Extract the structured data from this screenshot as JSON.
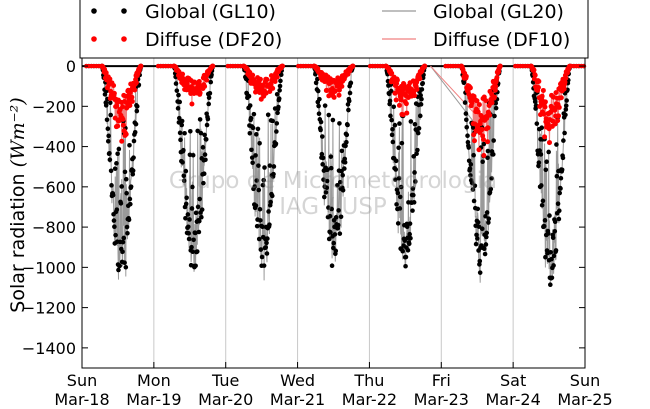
{
  "chart_data": {
    "type": "scatter",
    "ylabel": "Solar radiation",
    "ylabel_unit": "(Wm⁻²)",
    "ylim": [
      -1500,
      50
    ],
    "xlim": [
      0,
      7
    ],
    "yticks": [
      0,
      -200,
      -400,
      -600,
      -800,
      -1000,
      -1200,
      -1400
    ],
    "xticks": [
      {
        "pos": 0,
        "day": "Sun",
        "date": "Mar-18"
      },
      {
        "pos": 1,
        "day": "Mon",
        "date": "Mar-19"
      },
      {
        "pos": 2,
        "day": "Tue",
        "date": "Mar-20"
      },
      {
        "pos": 3,
        "day": "Wed",
        "date": "Mar-21"
      },
      {
        "pos": 4,
        "day": "Thu",
        "date": "Mar-22"
      },
      {
        "pos": 5,
        "day": "Fri",
        "date": "Mar-23"
      },
      {
        "pos": 6,
        "day": "Sat",
        "date": "Mar-24"
      },
      {
        "pos": 7,
        "day": "Sun",
        "date": "Mar-25"
      }
    ],
    "grid": "vertical",
    "legend_placement": "top",
    "watermark": [
      "Grupo de Micrometeorologia",
      "IAG / USP"
    ],
    "series": [
      {
        "name": "Global (GL10)",
        "style": "markers",
        "color": "#000000",
        "days": [
          {
            "peak": -1090,
            "center": 0.55
          },
          {
            "peak": -1040,
            "center": 1.55
          },
          {
            "peak": -1010,
            "center": 2.52
          },
          {
            "peak": -1005,
            "center": 3.5
          },
          {
            "peak": -1010,
            "center": 4.5
          },
          {
            "peak": -1030,
            "center": 5.55
          },
          {
            "peak": -1090,
            "center": 6.52
          }
        ]
      },
      {
        "name": "Diffuse (DF20)",
        "style": "markers",
        "color": "#ff0000",
        "days": [
          {
            "peak": -380,
            "center": 0.55
          },
          {
            "peak": -200,
            "center": 1.55
          },
          {
            "peak": -190,
            "center": 2.52
          },
          {
            "peak": -170,
            "center": 3.5
          },
          {
            "peak": -260,
            "center": 4.5
          },
          {
            "peak": -480,
            "center": 5.55
          },
          {
            "peak": -420,
            "center": 6.52
          }
        ]
      },
      {
        "name": "Global (GL20)",
        "style": "line",
        "color": "#999999"
      },
      {
        "name": "Diffuse (DF10)",
        "style": "line",
        "color": "#f08080"
      }
    ]
  }
}
